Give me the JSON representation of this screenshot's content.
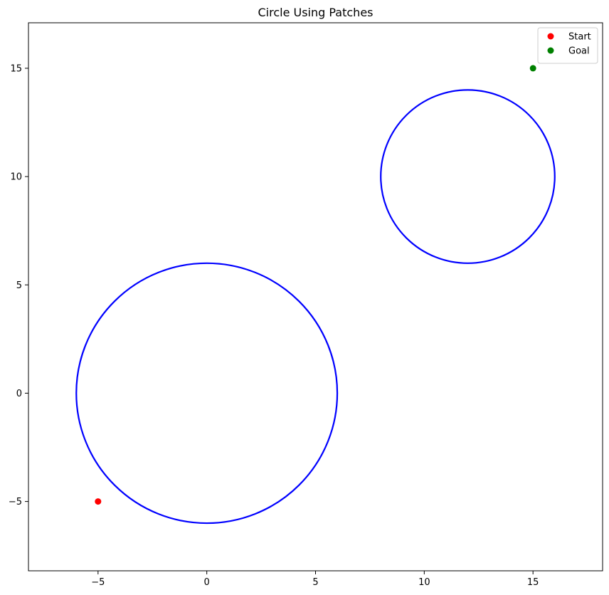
{
  "chart_data": {
    "type": "scatter",
    "title": "Circle Using Patches",
    "xlabel": "",
    "ylabel": "",
    "xlim": [
      -8.2,
      18.2
    ],
    "ylim": [
      -8.2,
      17.1
    ],
    "xticks": [
      -5,
      0,
      5,
      10,
      15
    ],
    "yticks": [
      -5,
      0,
      5,
      10,
      15
    ],
    "grid": false,
    "legend_position": "upper-right",
    "circles": [
      {
        "center": [
          0,
          0
        ],
        "radius": 6,
        "color": "#0000ff"
      },
      {
        "center": [
          12,
          10
        ],
        "radius": 4,
        "color": "#0000ff"
      }
    ],
    "series": [
      {
        "name": "Start",
        "color": "#ff0000",
        "points": [
          [
            -5,
            -5
          ]
        ]
      },
      {
        "name": "Goal",
        "color": "#008000",
        "points": [
          [
            15,
            15
          ]
        ]
      }
    ]
  }
}
